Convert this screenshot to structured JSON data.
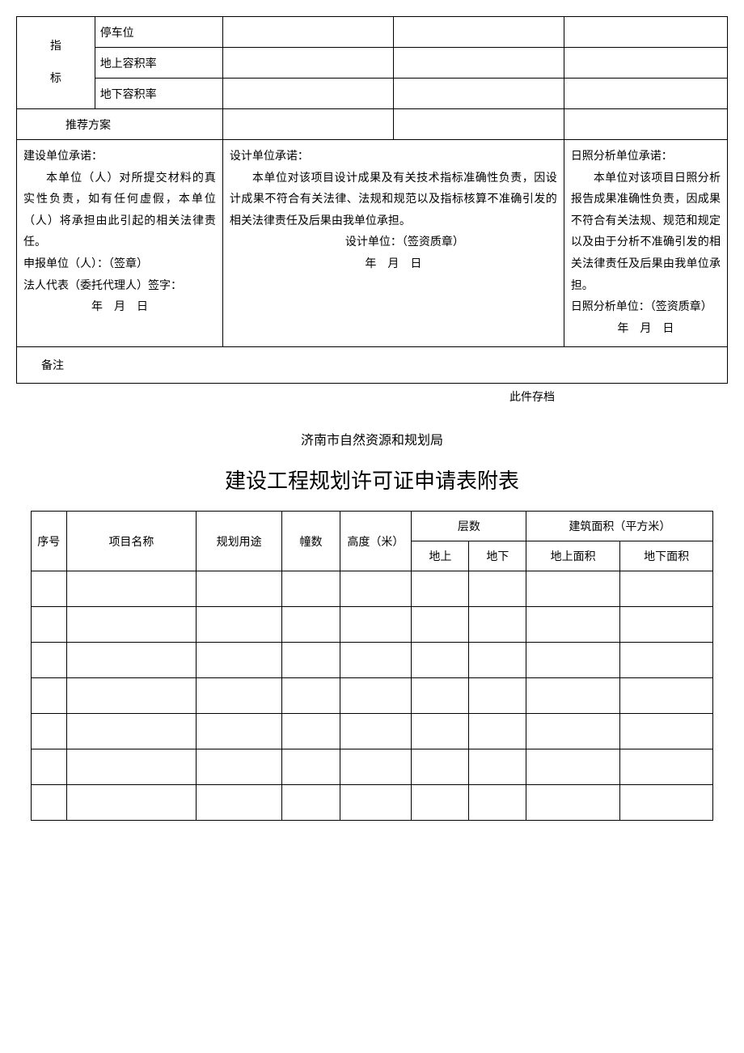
{
  "table1": {
    "sideLabel1": "指",
    "sideLabel2": "标",
    "rows": {
      "parking": "停车位",
      "aboveFar": "地上容积率",
      "belowFar": "地下容积率"
    },
    "recommend": "推荐方案",
    "commit1": {
      "title": "建设单位承诺：",
      "body": "本单位（人）对所提交材料的真实性负责，如有任何虚假，本单位（人）将承担由此引起的相关法律责任。",
      "sig1": "申报单位（人）：（签章）",
      "sig2": "法人代表（委托代理人）签字：",
      "date": "年　月　日"
    },
    "commit2": {
      "title": "设计单位承诺：",
      "body": "本单位对该项目设计成果及有关技术指标准确性负责，因设计成果不符合有关法律、法规和规范以及指标核算不准确引发的相关法律责任及后果由我单位承担。",
      "sig": "设计单位：（签资质章）",
      "date": "年　月　日"
    },
    "commit3": {
      "title": "日照分析单位承诺：",
      "body": "本单位对该项目日照分析报告成果准确性负责，因成果不符合有关法规、规范和规定以及由于分析不准确引发的相关法律责任及后果由我单位承担。",
      "sig": "日照分析单位：（签资质章）",
      "date": "年　月　日"
    },
    "remark": "备注"
  },
  "archive": "此件存档",
  "dept": "济南市自然资源和规划局",
  "title2": "建设工程规划许可证申请表附表",
  "table2": {
    "headers": {
      "seq": "序号",
      "name": "项目名称",
      "use": "规划用途",
      "buildings": "幢数",
      "height": "高度（米）",
      "floors": "层数",
      "floorsAbove": "地上",
      "floorsBelow": "地下",
      "area": "建筑面积（平方米）",
      "areaAbove": "地上面积",
      "areaBelow": "地下面积"
    },
    "rowCount": 7
  }
}
